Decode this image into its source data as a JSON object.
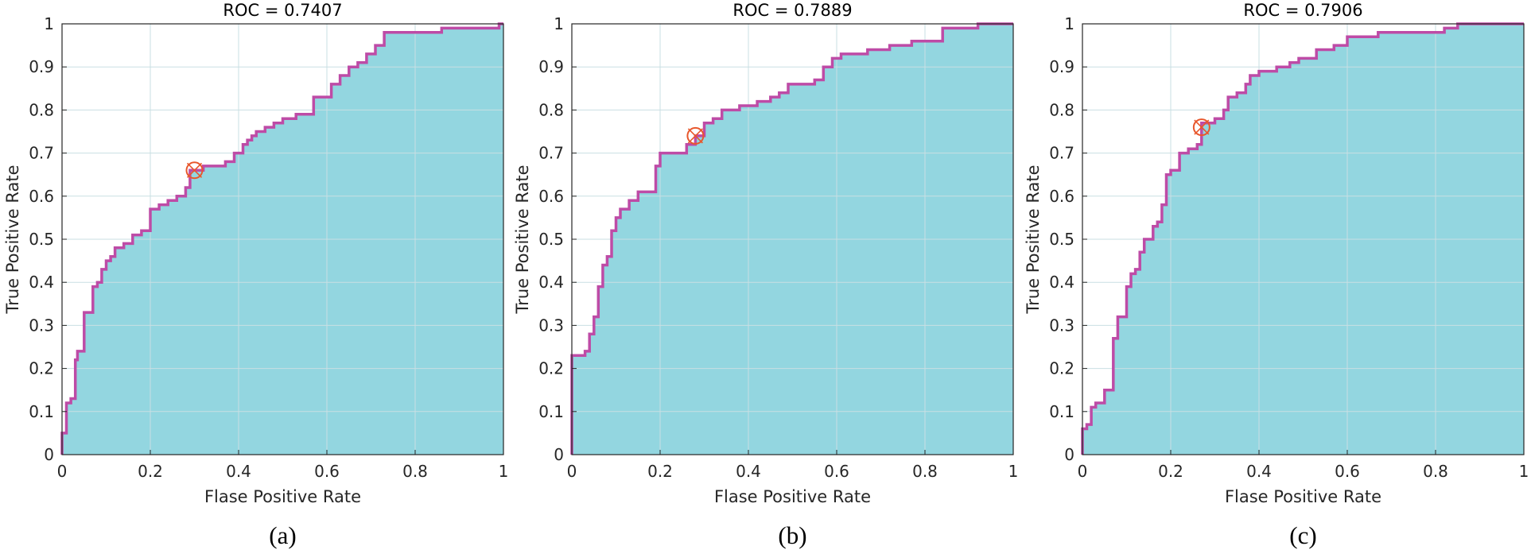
{
  "colors": {
    "fill": "#93d6e0",
    "curve": "#be4ba6",
    "marker": "#e8572c",
    "grid": "#c9dfe3",
    "axis": "#262626"
  },
  "chart_data": [
    {
      "type": "area",
      "title": "ROC = 0.7407",
      "xlabel": "Flase Positive Rate",
      "ylabel": "True Positive Rate",
      "caption": "(a)",
      "xlim": [
        0,
        1
      ],
      "ylim": [
        0,
        1
      ],
      "xticks": [
        "0",
        "0.2",
        "0.4",
        "0.6",
        "0.8",
        "1"
      ],
      "yticks": [
        "0",
        "0.1",
        "0.2",
        "0.3",
        "0.4",
        "0.5",
        "0.6",
        "0.7",
        "0.8",
        "0.9",
        "1"
      ],
      "grid": true,
      "marker": "circle-x",
      "operating_point": [
        0.3,
        0.66
      ],
      "x": [
        0,
        0,
        0.01,
        0.01,
        0.02,
        0.02,
        0.03,
        0.03,
        0.035,
        0.035,
        0.05,
        0.05,
        0.07,
        0.07,
        0.08,
        0.08,
        0.09,
        0.09,
        0.1,
        0.1,
        0.11,
        0.11,
        0.12,
        0.12,
        0.14,
        0.14,
        0.16,
        0.16,
        0.18,
        0.18,
        0.2,
        0.2,
        0.22,
        0.22,
        0.24,
        0.24,
        0.26,
        0.26,
        0.28,
        0.28,
        0.29,
        0.29,
        0.32,
        0.32,
        0.37,
        0.37,
        0.39,
        0.39,
        0.41,
        0.41,
        0.42,
        0.42,
        0.43,
        0.43,
        0.44,
        0.44,
        0.46,
        0.46,
        0.48,
        0.48,
        0.5,
        0.5,
        0.53,
        0.53,
        0.57,
        0.57,
        0.61,
        0.61,
        0.63,
        0.63,
        0.65,
        0.65,
        0.67,
        0.67,
        0.69,
        0.69,
        0.71,
        0.71,
        0.73,
        0.73,
        0.86,
        0.86,
        0.99,
        0.99,
        1
      ],
      "y": [
        0,
        0.05,
        0.05,
        0.12,
        0.12,
        0.13,
        0.13,
        0.22,
        0.22,
        0.24,
        0.24,
        0.33,
        0.33,
        0.39,
        0.39,
        0.4,
        0.4,
        0.43,
        0.43,
        0.45,
        0.45,
        0.46,
        0.46,
        0.48,
        0.48,
        0.49,
        0.49,
        0.51,
        0.51,
        0.52,
        0.52,
        0.57,
        0.57,
        0.58,
        0.58,
        0.59,
        0.59,
        0.6,
        0.6,
        0.62,
        0.62,
        0.66,
        0.66,
        0.67,
        0.67,
        0.68,
        0.68,
        0.7,
        0.7,
        0.72,
        0.72,
        0.73,
        0.73,
        0.74,
        0.74,
        0.75,
        0.75,
        0.76,
        0.76,
        0.77,
        0.77,
        0.78,
        0.78,
        0.79,
        0.79,
        0.83,
        0.83,
        0.86,
        0.86,
        0.88,
        0.88,
        0.9,
        0.9,
        0.91,
        0.91,
        0.93,
        0.93,
        0.95,
        0.95,
        0.98,
        0.98,
        0.99,
        0.99,
        1.0,
        1.0
      ]
    },
    {
      "type": "area",
      "title": "ROC = 0.7889",
      "xlabel": "Flase Positive Rate",
      "ylabel": "True Positive Rate",
      "caption": "(b)",
      "xlim": [
        0,
        1
      ],
      "ylim": [
        0,
        1
      ],
      "xticks": [
        "0",
        "0.2",
        "0.4",
        "0.6",
        "0.8",
        "1"
      ],
      "yticks": [
        "0",
        "0.1",
        "0.2",
        "0.3",
        "0.4",
        "0.5",
        "0.6",
        "0.7",
        "0.8",
        "0.9",
        "1"
      ],
      "grid": true,
      "marker": "circle-x",
      "operating_point": [
        0.28,
        0.74
      ],
      "x": [
        0,
        0,
        0.03,
        0.03,
        0.04,
        0.04,
        0.05,
        0.05,
        0.06,
        0.06,
        0.07,
        0.07,
        0.08,
        0.08,
        0.09,
        0.09,
        0.1,
        0.1,
        0.11,
        0.11,
        0.13,
        0.13,
        0.15,
        0.15,
        0.19,
        0.19,
        0.2,
        0.2,
        0.26,
        0.26,
        0.28,
        0.28,
        0.3,
        0.3,
        0.32,
        0.32,
        0.34,
        0.34,
        0.38,
        0.38,
        0.42,
        0.42,
        0.45,
        0.45,
        0.47,
        0.47,
        0.49,
        0.49,
        0.55,
        0.55,
        0.57,
        0.57,
        0.59,
        0.59,
        0.61,
        0.61,
        0.67,
        0.67,
        0.72,
        0.72,
        0.77,
        0.77,
        0.84,
        0.84,
        0.92,
        0.92,
        1
      ],
      "y": [
        0,
        0.23,
        0.23,
        0.24,
        0.24,
        0.28,
        0.28,
        0.32,
        0.32,
        0.39,
        0.39,
        0.44,
        0.44,
        0.46,
        0.46,
        0.52,
        0.52,
        0.55,
        0.55,
        0.57,
        0.57,
        0.59,
        0.59,
        0.61,
        0.61,
        0.67,
        0.67,
        0.7,
        0.7,
        0.72,
        0.72,
        0.74,
        0.74,
        0.77,
        0.77,
        0.78,
        0.78,
        0.8,
        0.8,
        0.81,
        0.81,
        0.82,
        0.82,
        0.83,
        0.83,
        0.84,
        0.84,
        0.86,
        0.86,
        0.87,
        0.87,
        0.9,
        0.9,
        0.92,
        0.92,
        0.93,
        0.93,
        0.94,
        0.94,
        0.95,
        0.95,
        0.96,
        0.96,
        0.99,
        0.99,
        1.0,
        1.0
      ]
    },
    {
      "type": "area",
      "title": "ROC = 0.7906",
      "xlabel": "Flase Positive Rate",
      "ylabel": "True Positive Rate",
      "caption": "(c)",
      "xlim": [
        0,
        1
      ],
      "ylim": [
        0,
        1
      ],
      "xticks": [
        "0",
        "0.2",
        "0.4",
        "0.6",
        "0.8",
        "1"
      ],
      "yticks": [
        "0",
        "0.1",
        "0.2",
        "0.3",
        "0.4",
        "0.5",
        "0.6",
        "0.7",
        "0.8",
        "0.9",
        "1"
      ],
      "grid": true,
      "marker": "circle-x",
      "operating_point": [
        0.27,
        0.76
      ],
      "x": [
        0,
        0,
        0.01,
        0.01,
        0.02,
        0.02,
        0.03,
        0.03,
        0.05,
        0.05,
        0.07,
        0.07,
        0.08,
        0.08,
        0.1,
        0.1,
        0.11,
        0.11,
        0.12,
        0.12,
        0.13,
        0.13,
        0.14,
        0.14,
        0.16,
        0.16,
        0.17,
        0.17,
        0.18,
        0.18,
        0.19,
        0.19,
        0.2,
        0.2,
        0.22,
        0.22,
        0.24,
        0.24,
        0.26,
        0.26,
        0.27,
        0.27,
        0.3,
        0.3,
        0.32,
        0.32,
        0.33,
        0.33,
        0.35,
        0.35,
        0.37,
        0.37,
        0.38,
        0.38,
        0.4,
        0.4,
        0.44,
        0.44,
        0.47,
        0.47,
        0.49,
        0.49,
        0.53,
        0.53,
        0.57,
        0.57,
        0.6,
        0.6,
        0.67,
        0.67,
        0.82,
        0.82,
        0.85,
        0.85,
        1
      ],
      "y": [
        0,
        0.06,
        0.06,
        0.07,
        0.07,
        0.11,
        0.11,
        0.12,
        0.12,
        0.15,
        0.15,
        0.27,
        0.27,
        0.32,
        0.32,
        0.39,
        0.39,
        0.42,
        0.42,
        0.43,
        0.43,
        0.47,
        0.47,
        0.5,
        0.5,
        0.53,
        0.53,
        0.54,
        0.54,
        0.58,
        0.58,
        0.65,
        0.65,
        0.66,
        0.66,
        0.7,
        0.7,
        0.71,
        0.71,
        0.72,
        0.72,
        0.77,
        0.77,
        0.78,
        0.78,
        0.8,
        0.8,
        0.83,
        0.83,
        0.84,
        0.84,
        0.86,
        0.86,
        0.88,
        0.88,
        0.89,
        0.89,
        0.9,
        0.9,
        0.91,
        0.91,
        0.92,
        0.92,
        0.94,
        0.94,
        0.95,
        0.95,
        0.97,
        0.97,
        0.98,
        0.98,
        0.99,
        0.99,
        1.0,
        1.0
      ]
    }
  ]
}
